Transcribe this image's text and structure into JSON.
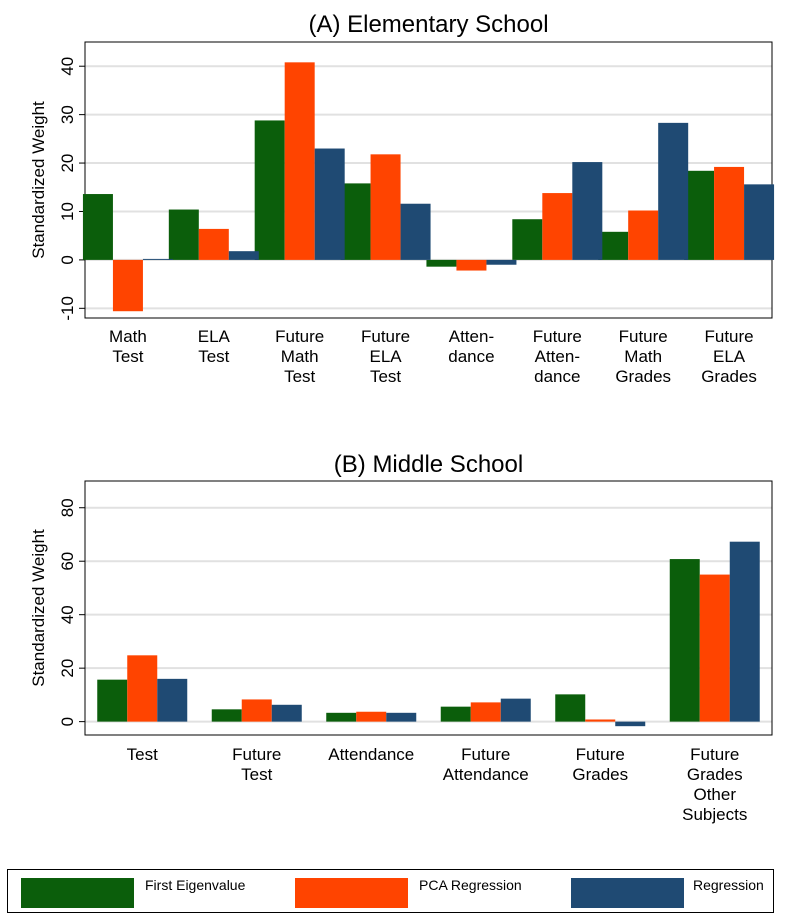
{
  "colors": {
    "first_eigenvalue": "#0b5e0b",
    "pca_regression": "#ff4400",
    "regression": "#1f4a73",
    "gridline": "#e1e1e1"
  },
  "legend": {
    "first_eigenvalue": "First Eigenvalue",
    "pca_regression": "PCA Regression",
    "regression": "Regression"
  },
  "chart_data": [
    {
      "type": "bar",
      "title": "(A) Elementary School",
      "ylabel": "Standardized Weight",
      "xlabel": "",
      "ylim": [
        -12,
        45
      ],
      "yticks": [
        -10,
        0,
        10,
        20,
        30,
        40
      ],
      "grid": true,
      "categories": [
        [
          "Math",
          "Test"
        ],
        [
          "ELA",
          "Test"
        ],
        [
          "Future",
          "Math",
          "Test"
        ],
        [
          "Future",
          "ELA",
          "Test"
        ],
        [
          "Atten-",
          "dance"
        ],
        [
          "Future",
          "Atten-",
          "dance"
        ],
        [
          "Future",
          "Math",
          "Grades"
        ],
        [
          "Future",
          "ELA",
          "Grades"
        ]
      ],
      "series": [
        {
          "name": "First Eigenvalue",
          "values": [
            13.6,
            10.4,
            28.8,
            15.8,
            -1.4,
            8.4,
            5.8,
            18.4
          ]
        },
        {
          "name": "PCA Regression",
          "values": [
            -10.6,
            6.4,
            40.8,
            21.8,
            -2.2,
            13.8,
            10.2,
            19.2
          ]
        },
        {
          "name": "Regression",
          "values": [
            0.2,
            1.8,
            23.0,
            11.6,
            -1.0,
            20.2,
            28.3,
            15.6
          ]
        }
      ]
    },
    {
      "type": "bar",
      "title": "(B) Middle School",
      "ylabel": "Standardized Weight",
      "xlabel": "",
      "ylim": [
        -5,
        90
      ],
      "yticks": [
        0,
        20,
        40,
        60,
        80
      ],
      "grid": true,
      "categories": [
        [
          "Test"
        ],
        [
          "Future",
          "Test"
        ],
        [
          "Attendance"
        ],
        [
          "Future",
          "Attendance"
        ],
        [
          "Future",
          "Grades"
        ],
        [
          "Future",
          "Grades",
          "Other",
          "Subjects"
        ]
      ],
      "series": [
        {
          "name": "First Eigenvalue",
          "values": [
            15.7,
            4.6,
            3.3,
            5.6,
            10.2,
            60.8
          ]
        },
        {
          "name": "PCA Regression",
          "values": [
            24.8,
            8.3,
            3.7,
            7.2,
            0.8,
            55.0
          ]
        },
        {
          "name": "Regression",
          "values": [
            16.0,
            6.3,
            3.3,
            8.6,
            -1.7,
            67.3
          ]
        }
      ]
    }
  ]
}
